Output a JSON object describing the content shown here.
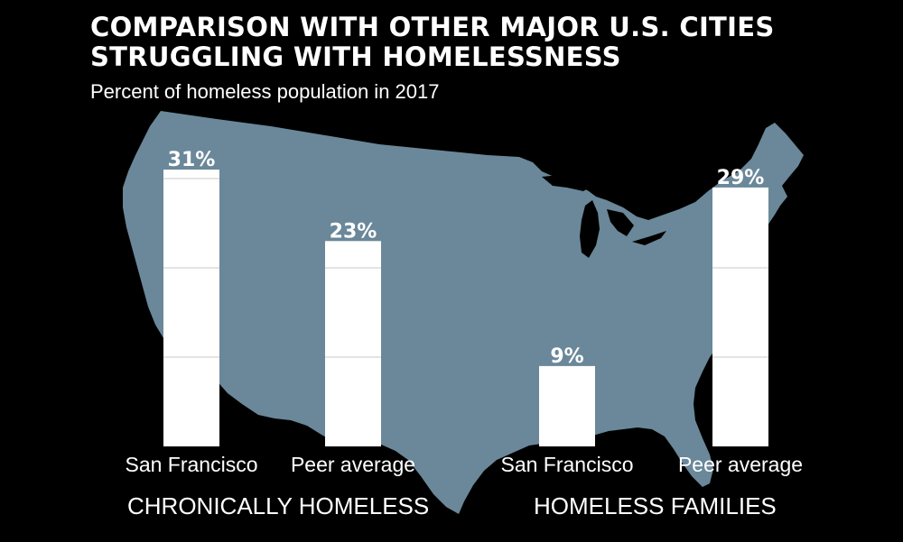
{
  "title_line1": "COMPARISON WITH OTHER MAJOR U.S. CITIES",
  "title_line2": "STRUGGLING WITH HOMELESSNESS",
  "subtitle": "Percent of homeless population in 2017",
  "colors": {
    "background": "#000000",
    "map": "#6a8899",
    "bar": "#ffffff",
    "gridline": "#c8c8c8"
  },
  "chart_data": {
    "type": "bar",
    "title": "COMPARISON WITH OTHER MAJOR U.S. CITIES STRUGGLING WITH HOMELESSNESS",
    "subtitle": "Percent of homeless population in 2017",
    "ylim": [
      0,
      31
    ],
    "grid": true,
    "gridlines": [
      10,
      20,
      30
    ],
    "groups": [
      {
        "name": "CHRONICALLY HOMELESS",
        "categories": [
          "San Francisco",
          "Peer average"
        ],
        "values": [
          31,
          23
        ],
        "value_labels": [
          "31%",
          "23%"
        ]
      },
      {
        "name": "HOMELESS FAMILIES",
        "categories": [
          "San Francisco",
          "Peer average"
        ],
        "values": [
          9,
          29
        ],
        "value_labels": [
          "9%",
          "29%"
        ]
      }
    ]
  }
}
